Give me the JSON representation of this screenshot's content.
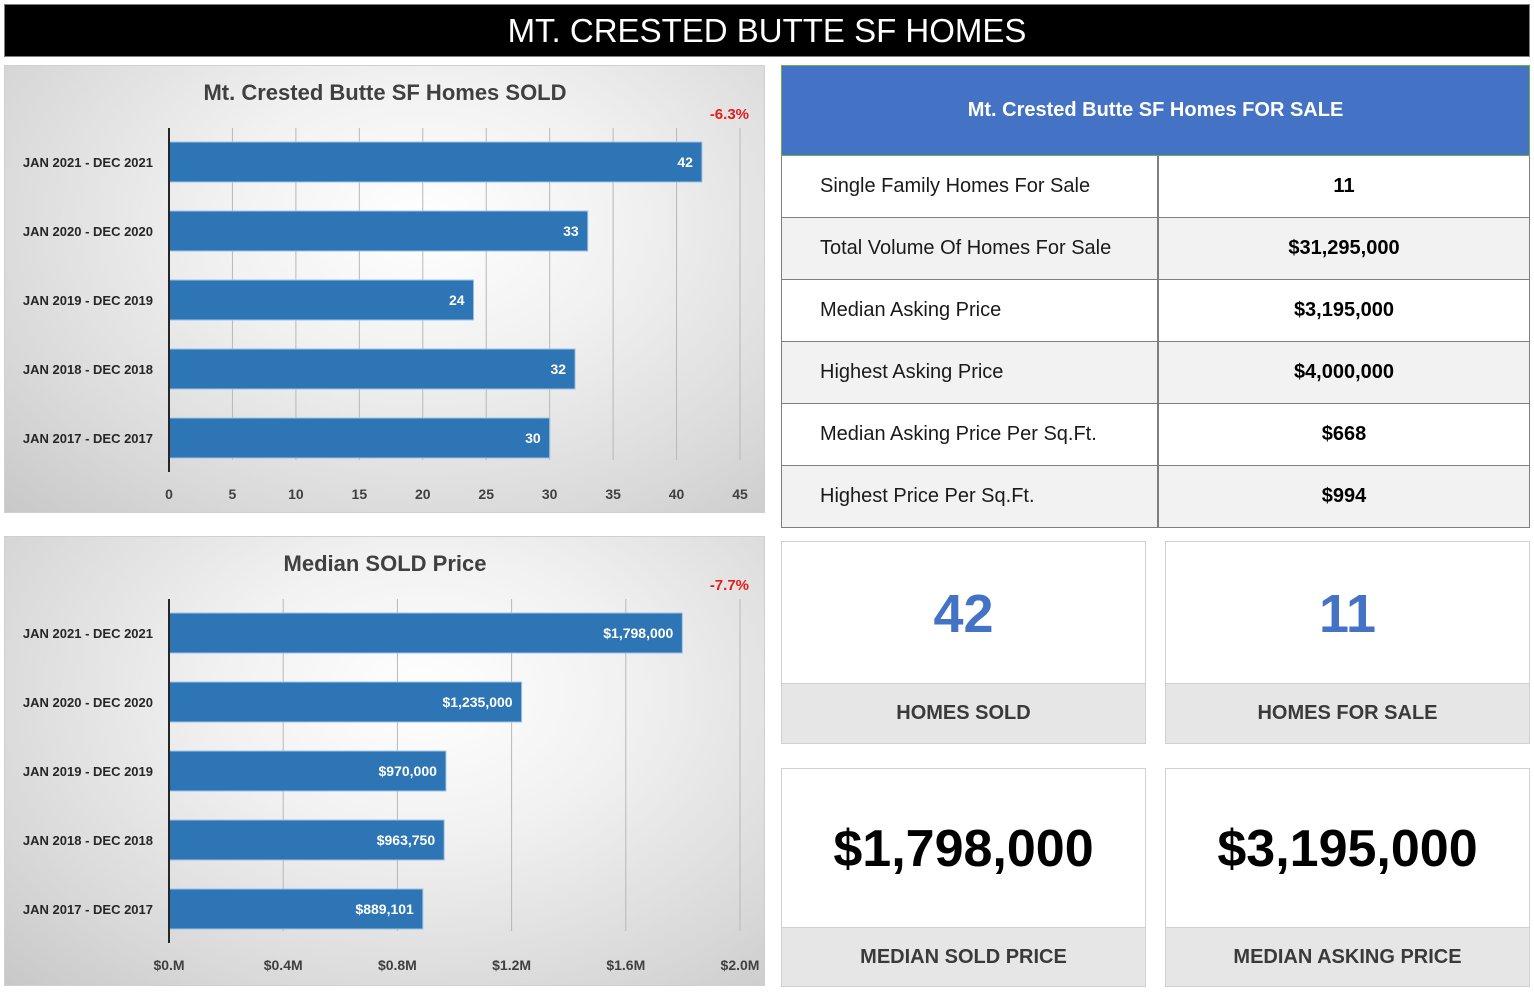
{
  "header": {
    "title": "MT. CRESTED BUTTE SF HOMES"
  },
  "colors": {
    "bar": "#2e75b6",
    "bar_border": "#9dc3e6",
    "table_header": "#4472c4",
    "stat_number_blue": "#4472c4",
    "change_negative": "#e31c1c"
  },
  "chart_data": [
    {
      "type": "bar",
      "orientation": "horizontal",
      "title": "Mt. Crested Butte SF Homes SOLD",
      "change_label": "-6.3%",
      "categories": [
        "JAN 2021 - DEC 2021",
        "JAN 2020 - DEC 2020",
        "JAN 2019 - DEC 2019",
        "JAN 2018 - DEC 2018",
        "JAN 2017 - DEC 2017"
      ],
      "values": [
        42,
        33,
        24,
        32,
        30
      ],
      "value_labels": [
        "42",
        "33",
        "24",
        "32",
        "30"
      ],
      "xlabel": "",
      "ylabel": "",
      "xlim": [
        0,
        45
      ],
      "ticks": [
        0,
        5,
        10,
        15,
        20,
        25,
        30,
        35,
        40,
        45
      ],
      "tick_labels": [
        "0",
        "5",
        "10",
        "15",
        "20",
        "25",
        "30",
        "35",
        "40",
        "45"
      ],
      "grid": true,
      "legend": "none"
    },
    {
      "type": "bar",
      "orientation": "horizontal",
      "title": "Median SOLD Price",
      "change_label": "-7.7%",
      "categories": [
        "JAN 2021 - DEC 2021",
        "JAN 2020 - DEC 2020",
        "JAN 2019 - DEC 2019",
        "JAN 2018 - DEC 2018",
        "JAN 2017 - DEC 2017"
      ],
      "values": [
        1798000,
        1235000,
        970000,
        963750,
        889101
      ],
      "value_labels": [
        "$1,798,000",
        "$1,235,000",
        "$970,000",
        "$963,750",
        "$889,101"
      ],
      "xlabel": "",
      "ylabel": "",
      "xlim": [
        0,
        2000000
      ],
      "ticks": [
        0,
        400000,
        800000,
        1200000,
        1600000,
        2000000
      ],
      "tick_labels": [
        "$0.M",
        "$0.4M",
        "$0.8M",
        "$1.2M",
        "$1.6M",
        "$2.0M"
      ],
      "grid": true,
      "legend": "none"
    }
  ],
  "for_sale_table": {
    "title": "Mt. Crested Butte SF Homes FOR SALE",
    "rows": [
      {
        "label": "Single Family Homes For Sale",
        "value": "11"
      },
      {
        "label": "Total Volume Of Homes For Sale",
        "value": "$31,295,000"
      },
      {
        "label": "Median Asking Price",
        "value": "$3,195,000"
      },
      {
        "label": "Highest Asking Price",
        "value": "$4,000,000"
      },
      {
        "label": "Median Asking Price Per Sq.Ft.",
        "value": "$668"
      },
      {
        "label": "Highest Price Per Sq.Ft.",
        "value": "$994"
      }
    ]
  },
  "stats": {
    "homes_sold": {
      "value": "42",
      "label": "HOMES SOLD"
    },
    "homes_for_sale": {
      "value": "11",
      "label": "HOMES FOR SALE"
    },
    "median_sold_price": {
      "value": "$1,798,000",
      "label": "MEDIAN SOLD PRICE"
    },
    "median_asking_price": {
      "value": "$3,195,000",
      "label": "MEDIAN ASKING PRICE"
    }
  }
}
